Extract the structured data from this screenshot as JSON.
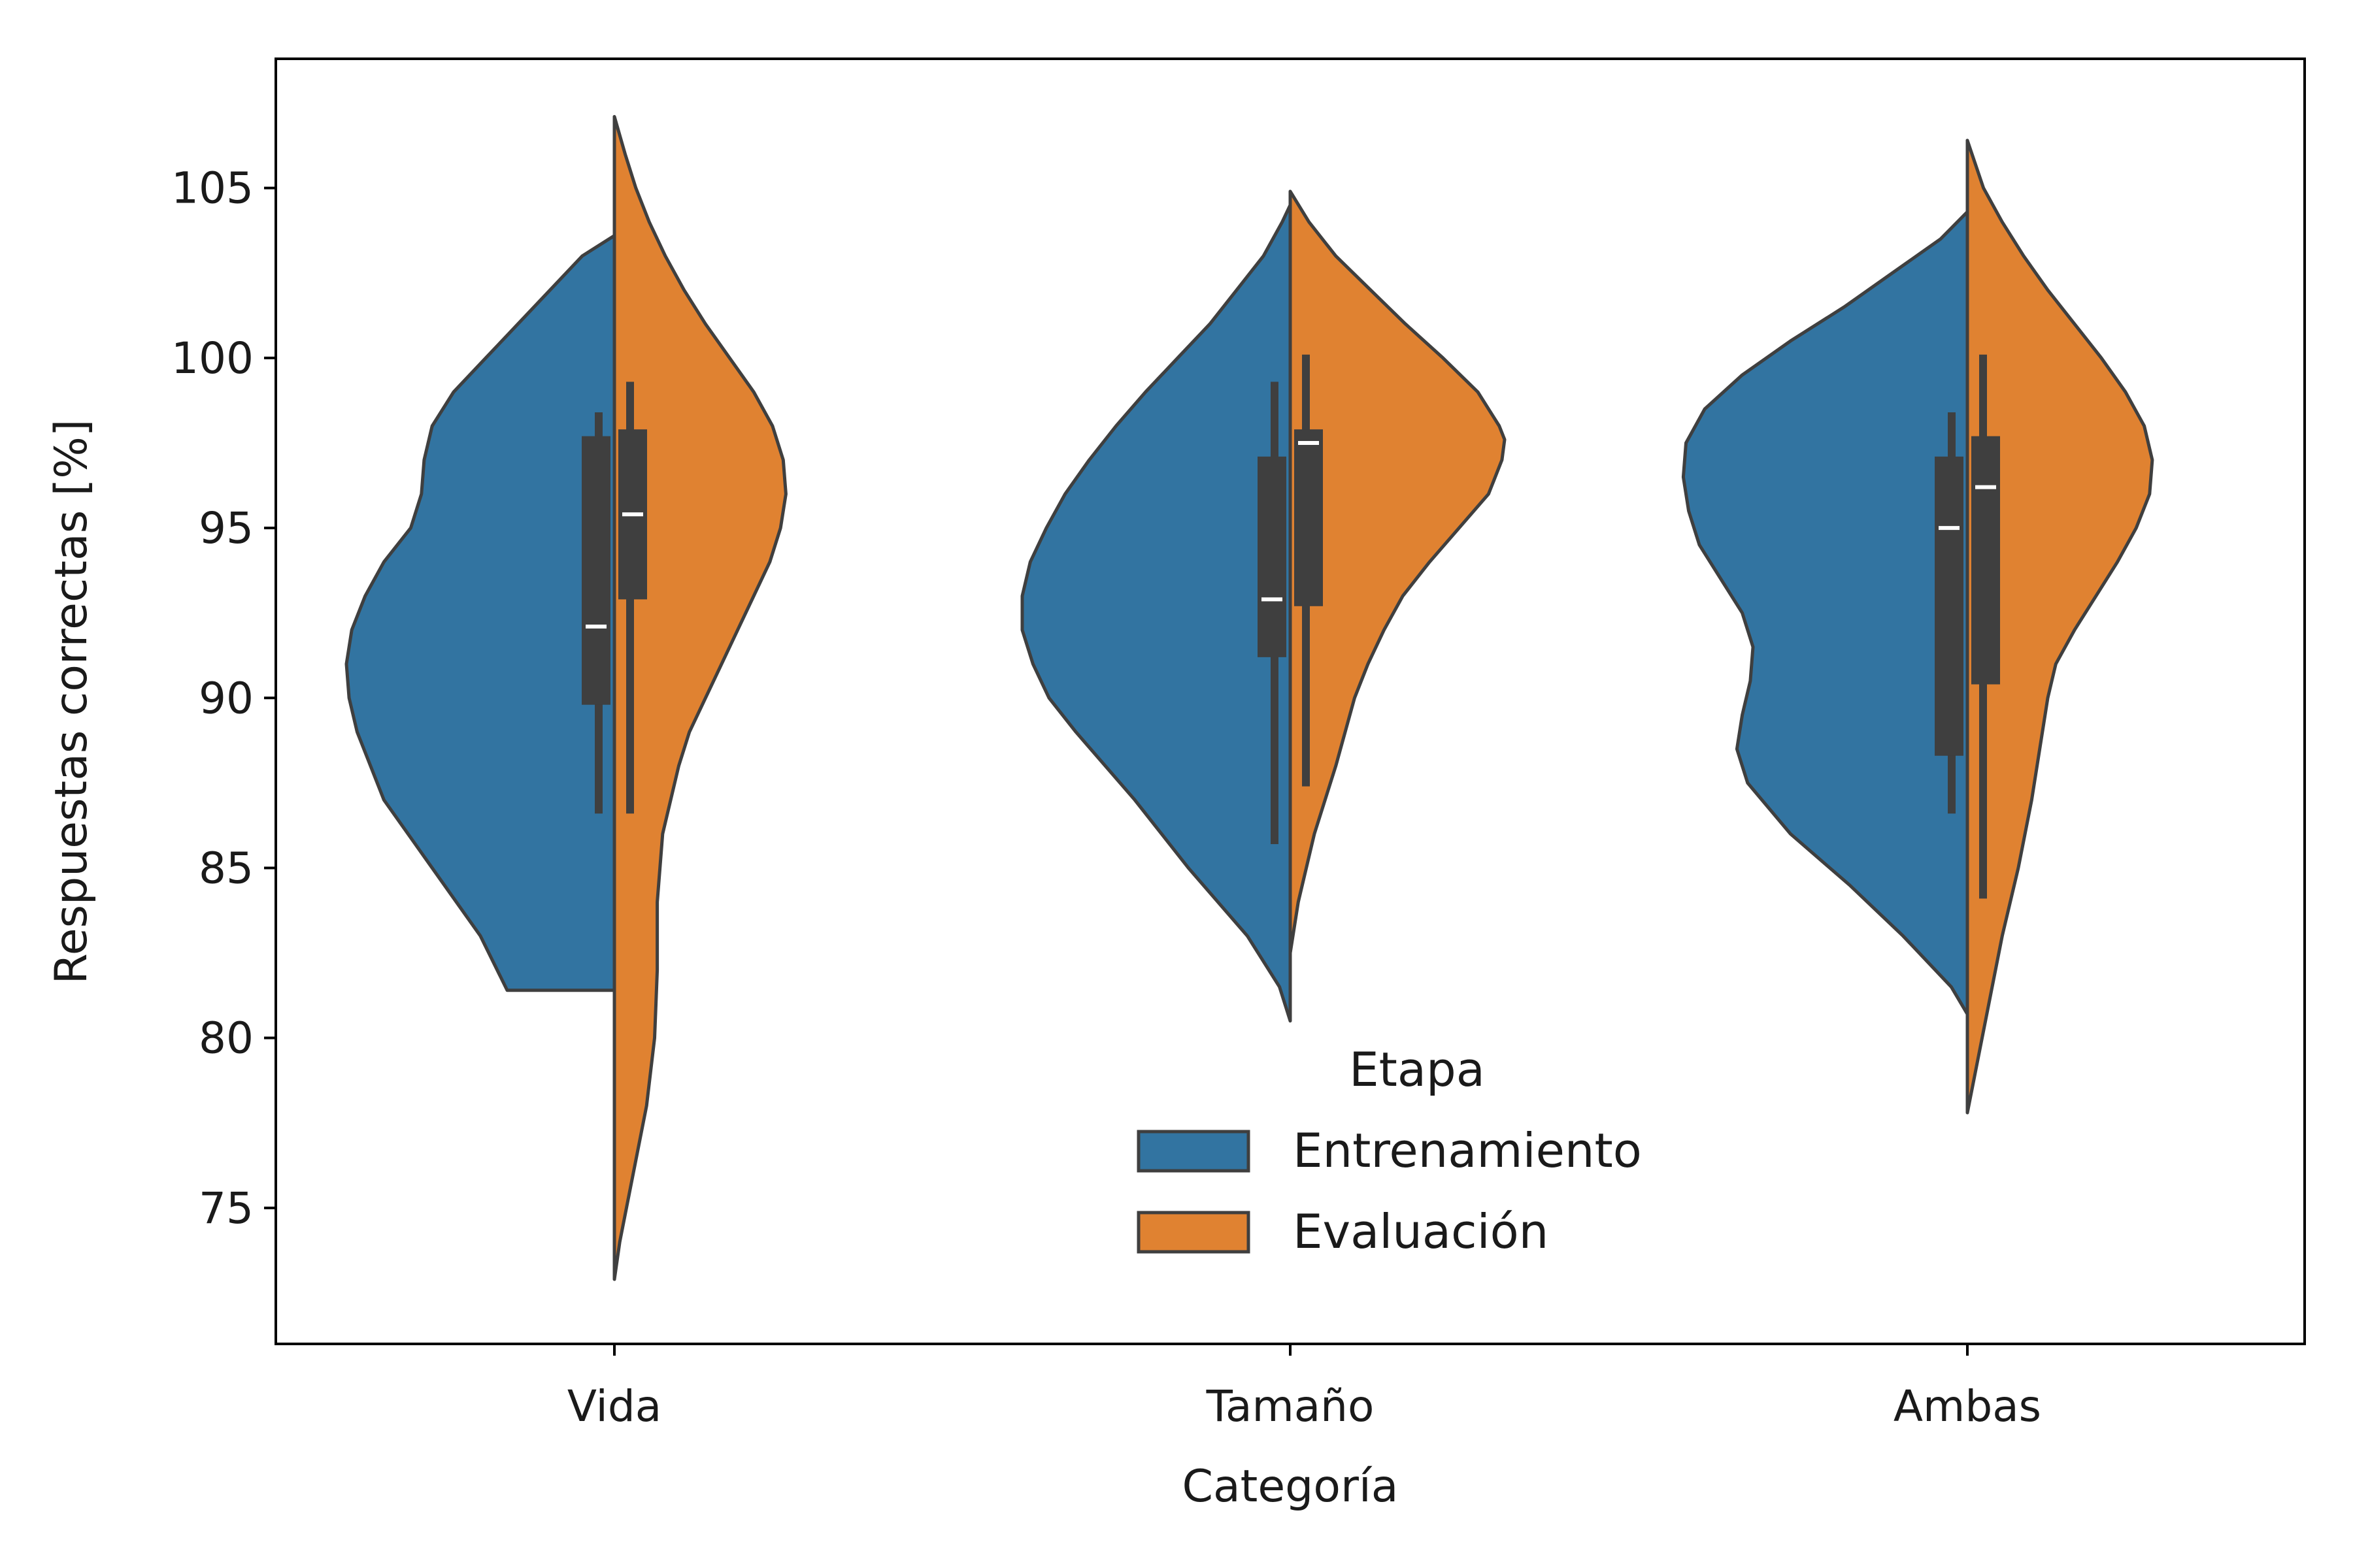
{
  "chart_data": {
    "type": "violin",
    "xlabel": "Categoría",
    "ylabel": "Respuestas correctas [%]",
    "ylim": [
      71,
      108.8
    ],
    "yticks": [
      75,
      80,
      85,
      90,
      95,
      100,
      105
    ],
    "grid": false,
    "split": true,
    "categories": [
      "Vida",
      "Tamaño",
      "Ambas"
    ],
    "legend": {
      "title": "Etapa",
      "position": "lower-center"
    },
    "series": [
      {
        "name": "Entrenamiento",
        "color": "#3274a1",
        "side": "left",
        "groups": [
          {
            "category": "Vida",
            "min": 81.4,
            "max": 103.6,
            "q1": 89.8,
            "median": 92.1,
            "q3": 97.7,
            "whisker_low": 86.6,
            "whisker_high": 98.4,
            "density": [
              [
                81.4,
                0.4
              ],
              [
                83,
                0.5
              ],
              [
                85,
                0.68
              ],
              [
                87,
                0.86
              ],
              [
                89,
                0.96
              ],
              [
                90,
                0.99
              ],
              [
                91,
                1.0
              ],
              [
                92,
                0.98
              ],
              [
                93,
                0.93
              ],
              [
                94,
                0.86
              ],
              [
                95,
                0.76
              ],
              [
                96,
                0.72
              ],
              [
                97,
                0.71
              ],
              [
                98,
                0.68
              ],
              [
                99,
                0.6
              ],
              [
                100,
                0.48
              ],
              [
                101,
                0.36
              ],
              [
                102,
                0.24
              ],
              [
                103,
                0.12
              ],
              [
                103.6,
                0.0
              ]
            ]
          },
          {
            "category": "Tamaño",
            "min": 80.5,
            "max": 104.5,
            "q1": 91.2,
            "median": 92.9,
            "q3": 97.1,
            "whisker_low": 85.7,
            "whisker_high": 99.3,
            "density": [
              [
                80.5,
                0.0
              ],
              [
                81.5,
                0.04
              ],
              [
                83,
                0.16
              ],
              [
                85,
                0.38
              ],
              [
                87,
                0.58
              ],
              [
                89,
                0.8
              ],
              [
                90,
                0.9
              ],
              [
                91,
                0.96
              ],
              [
                92,
                1.0
              ],
              [
                93,
                1.0
              ],
              [
                94,
                0.97
              ],
              [
                95,
                0.91
              ],
              [
                96,
                0.84
              ],
              [
                97,
                0.75
              ],
              [
                98,
                0.65
              ],
              [
                99,
                0.54
              ],
              [
                100,
                0.42
              ],
              [
                101,
                0.3
              ],
              [
                102,
                0.2
              ],
              [
                103,
                0.1
              ],
              [
                104,
                0.03
              ],
              [
                104.5,
                0.0
              ]
            ]
          },
          {
            "category": "Ambas",
            "min": 80.7,
            "max": 104.3,
            "q1": 88.3,
            "median": 95.0,
            "q3": 97.1,
            "whisker_low": 86.6,
            "whisker_high": 98.4,
            "density": [
              [
                80.7,
                0.0
              ],
              [
                81.5,
                0.06
              ],
              [
                83,
                0.24
              ],
              [
                84.5,
                0.44
              ],
              [
                86,
                0.66
              ],
              [
                87.5,
                0.82
              ],
              [
                88.5,
                0.86
              ],
              [
                89.5,
                0.84
              ],
              [
                90.5,
                0.81
              ],
              [
                91.5,
                0.8
              ],
              [
                92.5,
                0.84
              ],
              [
                93.5,
                0.92
              ],
              [
                94.5,
                1.0
              ],
              [
                95.5,
                1.04
              ],
              [
                96.5,
                1.06
              ],
              [
                97.5,
                1.05
              ],
              [
                98.5,
                0.98
              ],
              [
                99.5,
                0.84
              ],
              [
                100.5,
                0.66
              ],
              [
                101.5,
                0.46
              ],
              [
                102.5,
                0.28
              ],
              [
                103.5,
                0.1
              ],
              [
                104.3,
                0.0
              ]
            ]
          }
        ]
      },
      {
        "name": "Evaluación",
        "color": "#e08231",
        "side": "right",
        "groups": [
          {
            "category": "Vida",
            "min": 72.9,
            "max": 107.1,
            "q1": 92.9,
            "median": 95.4,
            "q3": 97.9,
            "whisker_low": 86.6,
            "whisker_high": 99.3,
            "density": [
              [
                72.9,
                0.0
              ],
              [
                74,
                0.02
              ],
              [
                76,
                0.07
              ],
              [
                78,
                0.12
              ],
              [
                80,
                0.15
              ],
              [
                82,
                0.16
              ],
              [
                84,
                0.16
              ],
              [
                86,
                0.18
              ],
              [
                88,
                0.24
              ],
              [
                89,
                0.28
              ],
              [
                90,
                0.34
              ],
              [
                91,
                0.4
              ],
              [
                92,
                0.46
              ],
              [
                93,
                0.52
              ],
              [
                94,
                0.58
              ],
              [
                95,
                0.62
              ],
              [
                96,
                0.64
              ],
              [
                97,
                0.63
              ],
              [
                98,
                0.59
              ],
              [
                99,
                0.52
              ],
              [
                100,
                0.43
              ],
              [
                101,
                0.34
              ],
              [
                102,
                0.26
              ],
              [
                103,
                0.19
              ],
              [
                104,
                0.13
              ],
              [
                105,
                0.08
              ],
              [
                106,
                0.04
              ],
              [
                107.1,
                0.0
              ]
            ]
          },
          {
            "category": "Tamaño",
            "min": 82.5,
            "max": 104.9,
            "q1": 92.7,
            "median": 97.5,
            "q3": 97.9,
            "whisker_low": 87.4,
            "whisker_high": 100.1,
            "density": [
              [
                82.5,
                0.0
              ],
              [
                84,
                0.03
              ],
              [
                86,
                0.09
              ],
              [
                88,
                0.17
              ],
              [
                90,
                0.24
              ],
              [
                91,
                0.29
              ],
              [
                92,
                0.35
              ],
              [
                93,
                0.42
              ],
              [
                94,
                0.52
              ],
              [
                95,
                0.63
              ],
              [
                96,
                0.74
              ],
              [
                97,
                0.79
              ],
              [
                97.6,
                0.8
              ],
              [
                98,
                0.78
              ],
              [
                99,
                0.7
              ],
              [
                100,
                0.57
              ],
              [
                101,
                0.43
              ],
              [
                102,
                0.3
              ],
              [
                103,
                0.17
              ],
              [
                104,
                0.07
              ],
              [
                104.9,
                0.0
              ]
            ]
          },
          {
            "category": "Ambas",
            "min": 77.8,
            "max": 106.4,
            "q1": 90.4,
            "median": 96.2,
            "q3": 97.7,
            "whisker_low": 84.1,
            "whisker_high": 100.1,
            "density": [
              [
                77.8,
                0.0
              ],
              [
                79,
                0.03
              ],
              [
                81,
                0.08
              ],
              [
                83,
                0.13
              ],
              [
                85,
                0.19
              ],
              [
                87,
                0.24
              ],
              [
                89,
                0.28
              ],
              [
                90,
                0.3
              ],
              [
                91,
                0.33
              ],
              [
                92,
                0.4
              ],
              [
                93,
                0.48
              ],
              [
                94,
                0.56
              ],
              [
                95,
                0.63
              ],
              [
                96,
                0.68
              ],
              [
                97,
                0.69
              ],
              [
                98,
                0.66
              ],
              [
                99,
                0.59
              ],
              [
                100,
                0.5
              ],
              [
                101,
                0.4
              ],
              [
                102,
                0.3
              ],
              [
                103,
                0.21
              ],
              [
                104,
                0.13
              ],
              [
                105,
                0.06
              ],
              [
                106.4,
                0.0
              ]
            ]
          }
        ]
      }
    ]
  }
}
